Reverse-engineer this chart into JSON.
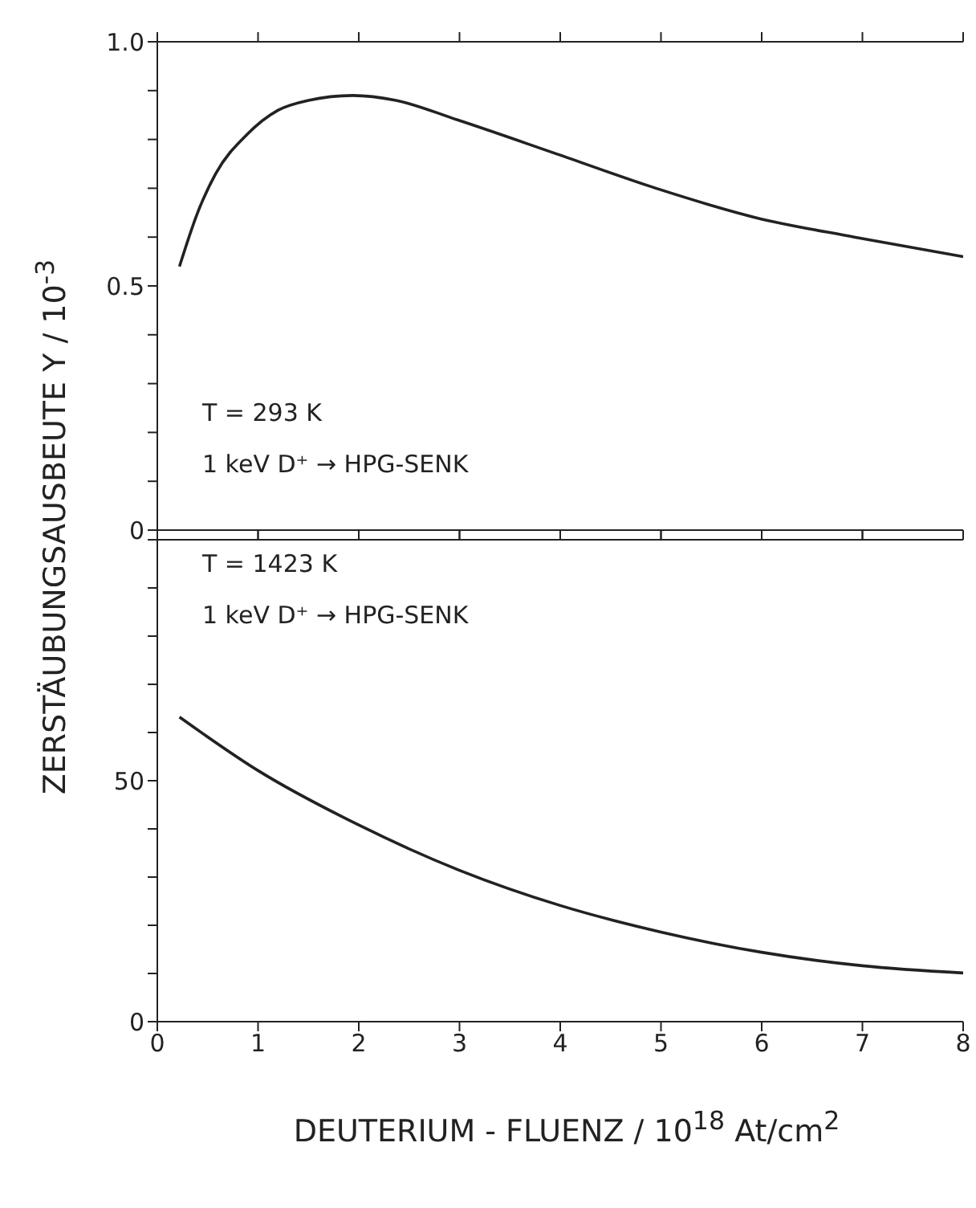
{
  "chart_data": [
    {
      "type": "line",
      "x": [
        0.22,
        0.4,
        0.58,
        0.89,
        1.2,
        1.5,
        1.94,
        2.37,
        2.98,
        3.97,
        4.95,
        5.94,
        6.92,
        8
      ],
      "series": [
        {
          "color": "#222222",
          "values": [
            0.54,
            0.65,
            0.73,
            0.81,
            0.86,
            0.88,
            0.89,
            0.88,
            0.84,
            0.77,
            0.7,
            0.64,
            0.6,
            0.56
          ]
        }
      ],
      "xlim": [
        0,
        8
      ],
      "ylim": [
        0,
        1
      ],
      "yticks": [
        0,
        {
          "value": 0.1,
          "label": null
        },
        {
          "value": 0.2,
          "label": null
        },
        {
          "value": 0.3,
          "label": null
        },
        {
          "value": 0.4,
          "label": null
        },
        0.5,
        {
          "value": 0.6,
          "label": null
        },
        {
          "value": 0.7,
          "label": null
        },
        {
          "value": 0.8,
          "label": null
        },
        {
          "value": 0.9,
          "label": null
        },
        {
          "value": 1,
          "label": "1.0"
        }
      ],
      "xticks": [
        {
          "value": 0,
          "label": null
        },
        {
          "value": 1,
          "label": null
        },
        {
          "value": 2,
          "label": null
        },
        {
          "value": 3,
          "label": null
        },
        {
          "value": 4,
          "label": null
        },
        {
          "value": 5,
          "label": null
        },
        {
          "value": 6,
          "label": null
        },
        {
          "value": 7,
          "label": null
        },
        {
          "value": 8,
          "label": null
        }
      ],
      "tick_labels": "y",
      "ylabel": "ZERSTÄUBUNGSAUSBEUTE Y / 10$^{-3}$",
      "annotations": [
        "T = 293 K",
        "1 keV D⁺ → HPG-SENK"
      ]
    },
    {
      "type": "line",
      "x": [
        0.22,
        1,
        2,
        3,
        4,
        5,
        6,
        7,
        8
      ],
      "series": [
        {
          "color": "#222222",
          "values": [
            63.2,
            52.1,
            40.8,
            31.4,
            24.1,
            18.6,
            14.4,
            11.6,
            10.1
          ]
        }
      ],
      "xlim": [
        0,
        8
      ],
      "ylim": [
        0,
        100
      ],
      "yticks": [
        0,
        {
          "value": 10,
          "label": null
        },
        {
          "value": 20,
          "label": null
        },
        {
          "value": 30,
          "label": null
        },
        {
          "value": 40,
          "label": null
        },
        50,
        {
          "value": 60,
          "label": null
        },
        {
          "value": 70,
          "label": null
        },
        {
          "value": 80,
          "label": null
        },
        {
          "value": 90,
          "label": null
        },
        {
          "value": 100,
          "label": null
        }
      ],
      "xticks": [
        0,
        1,
        2,
        3,
        4,
        5,
        6,
        7,
        8
      ],
      "xlabel": "DEUTERIUM - FLUENZ / 10$^{18}$ At/cm$^{2}$",
      "annotations": [
        "T = 1423 K",
        "1 keV D⁺ → HPG-SENK"
      ]
    }
  ]
}
